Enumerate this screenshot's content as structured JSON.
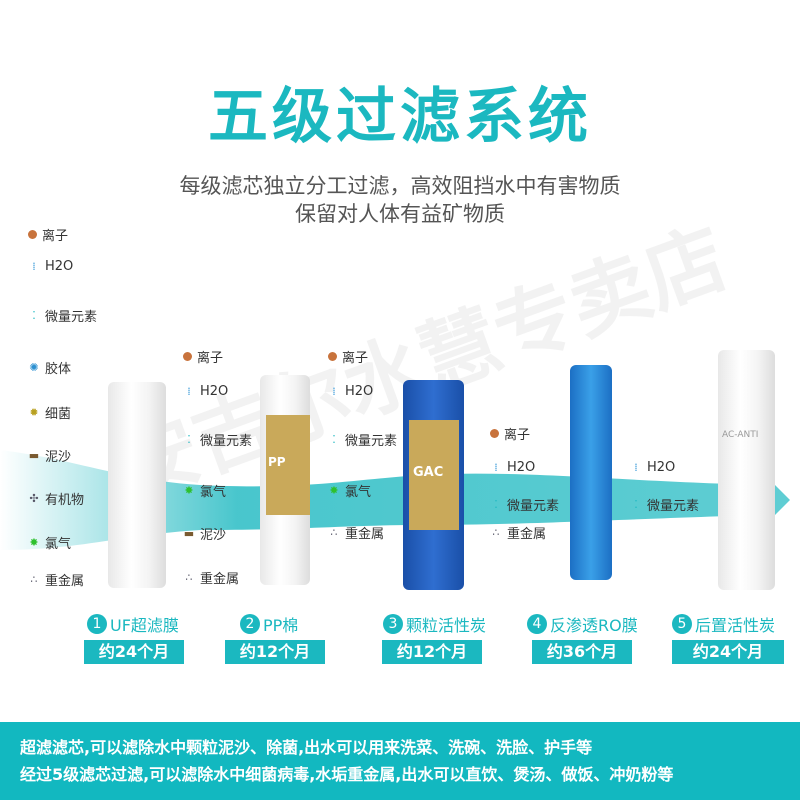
{
  "title": "五级过滤系统",
  "subtitle": [
    "每级滤芯独立分工过滤，高效阻挡水中有害物质",
    "保留对人体有益矿物质"
  ],
  "watermark": "安吉尔水慧专卖店",
  "colors": {
    "accent": "#1bb8c0",
    "band": "#12b8c0"
  },
  "columns": [
    [
      "离子",
      "H2O",
      "微量元素",
      "胶体",
      "细菌",
      "泥沙",
      "有机物",
      "氯气",
      "重金属"
    ],
    [
      "离子",
      "H2O",
      "微量元素",
      "氯气",
      "泥沙",
      "重金属"
    ],
    [
      "离子",
      "H2O",
      "微量元素",
      "氯气",
      "重金属"
    ],
    [
      "离子",
      "H2O",
      "微量元素",
      "重金属"
    ],
    [
      "H2O",
      "微量元素"
    ]
  ],
  "filters": [
    {
      "num": "1",
      "name": "UF超滤膜",
      "life": "约24个月"
    },
    {
      "num": "2",
      "name": "PP棉",
      "life": "约12个月"
    },
    {
      "num": "3",
      "name": "颗粒活性炭",
      "life": "约12个月"
    },
    {
      "num": "4",
      "name": "反渗透RO膜",
      "life": "约36个月"
    },
    {
      "num": "5",
      "name": "后置活性炭",
      "life": "约24个月"
    }
  ],
  "filter_marks": {
    "pp": "PP",
    "gac": "GAC",
    "post": "AC-ANTI"
  },
  "footer": [
    "超滤滤芯,可以滤除水中颗粒泥沙、除菌,出水可以用来洗菜、洗碗、洗脸、护手等",
    "经过5级滤芯过滤,可以滤除水中细菌病毒,水垢重金属,出水可以直饮、煲汤、做饭、冲奶粉等"
  ]
}
